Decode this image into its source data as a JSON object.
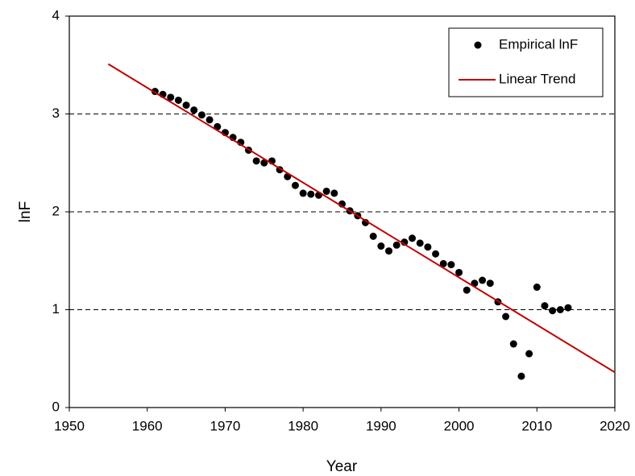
{
  "chart_data": {
    "type": "scatter",
    "xlabel": "Year",
    "ylabel": "lnF",
    "xlim": [
      1950,
      2020
    ],
    "xticks": [
      1950,
      1960,
      1970,
      1980,
      1990,
      2000,
      2010,
      2020
    ],
    "ylim": [
      0,
      4
    ],
    "yticks": [
      0,
      1,
      2,
      3,
      4
    ],
    "grid": true,
    "grid_style": "dashed",
    "legend": "upper right",
    "series": [
      {
        "name": "Empirical lnF",
        "type": "scatter",
        "color": "#000000",
        "x": [
          1961,
          1962,
          1963,
          1964,
          1965,
          1966,
          1967,
          1968,
          1969,
          1970,
          1971,
          1972,
          1973,
          1974,
          1975,
          1976,
          1977,
          1978,
          1979,
          1980,
          1981,
          1982,
          1983,
          1984,
          1985,
          1986,
          1987,
          1988,
          1989,
          1990,
          1991,
          1992,
          1993,
          1994,
          1995,
          1996,
          1997,
          1998,
          1999,
          2000,
          2001,
          2002,
          2003,
          2004,
          2005,
          2006,
          2007,
          2008,
          2009,
          2010,
          2011,
          2012,
          2013,
          2014
        ],
        "values": [
          3.23,
          3.2,
          3.17,
          3.14,
          3.09,
          3.04,
          2.99,
          2.94,
          2.87,
          2.81,
          2.76,
          2.71,
          2.63,
          2.52,
          2.5,
          2.52,
          2.43,
          2.36,
          2.27,
          2.19,
          2.18,
          2.17,
          2.21,
          2.19,
          2.08,
          2.01,
          1.96,
          1.89,
          1.75,
          1.65,
          1.6,
          1.66,
          1.69,
          1.73,
          1.68,
          1.64,
          1.57,
          1.47,
          1.46,
          1.38,
          1.2,
          1.27,
          1.3,
          1.27,
          1.08,
          0.93,
          0.65,
          0.32,
          0.55,
          1.23,
          1.04,
          0.99,
          1.0,
          1.02
        ]
      },
      {
        "name": "Linear Trend",
        "type": "line",
        "color": "#c00000",
        "x": [
          1955,
          2020
        ],
        "values": [
          3.51,
          0.36
        ]
      }
    ]
  }
}
